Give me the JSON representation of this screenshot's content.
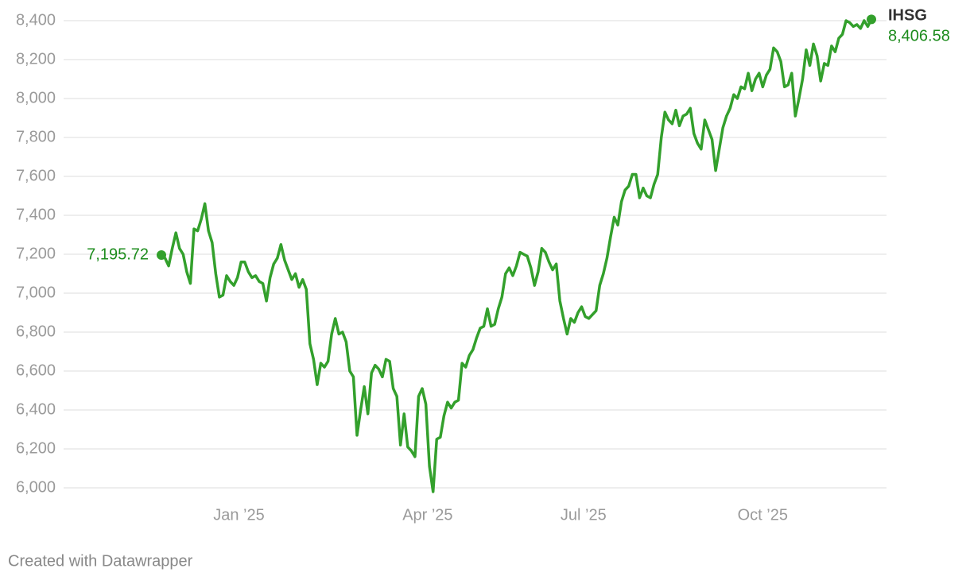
{
  "chart_data": {
    "type": "line",
    "series": [
      {
        "name": "IHSG",
        "color": "#33a02c",
        "label_color": "#1d8c1d",
        "values": [
          7195.72,
          7180,
          7140,
          7230,
          7310,
          7230,
          7200,
          7110,
          7050,
          7330,
          7320,
          7380,
          7460,
          7320,
          7260,
          7100,
          6980,
          6990,
          7090,
          7060,
          7040,
          7080,
          7160,
          7160,
          7110,
          7080,
          7090,
          7060,
          7050,
          6960,
          7080,
          7150,
          7180,
          7250,
          7170,
          7120,
          7070,
          7100,
          7030,
          7070,
          7020,
          6740,
          6660,
          6530,
          6640,
          6620,
          6650,
          6790,
          6870,
          6790,
          6800,
          6750,
          6600,
          6570,
          6270,
          6400,
          6520,
          6380,
          6590,
          6630,
          6610,
          6570,
          6660,
          6650,
          6510,
          6470,
          6220,
          6380,
          6210,
          6190,
          6160,
          6470,
          6510,
          6430,
          6110,
          5980,
          6250,
          6260,
          6370,
          6440,
          6410,
          6440,
          6450,
          6640,
          6620,
          6680,
          6710,
          6770,
          6820,
          6830,
          6920,
          6830,
          6840,
          6920,
          6980,
          7100,
          7130,
          7090,
          7140,
          7210,
          7200,
          7190,
          7130,
          7040,
          7110,
          7230,
          7210,
          7160,
          7120,
          7150,
          6960,
          6870,
          6790,
          6870,
          6850,
          6900,
          6930,
          6880,
          6870,
          6890,
          6910,
          7040,
          7100,
          7180,
          7290,
          7390,
          7350,
          7470,
          7530,
          7550,
          7610,
          7610,
          7490,
          7540,
          7500,
          7490,
          7560,
          7610,
          7800,
          7930,
          7890,
          7870,
          7940,
          7860,
          7910,
          7920,
          7950,
          7820,
          7770,
          7740,
          7890,
          7840,
          7790,
          7630,
          7740,
          7850,
          7910,
          7950,
          8020,
          8000,
          8060,
          8050,
          8130,
          8040,
          8100,
          8130,
          8060,
          8120,
          8150,
          8260,
          8240,
          8190,
          8060,
          8070,
          8130,
          7910,
          8000,
          8100,
          8250,
          8170,
          8280,
          8220,
          8090,
          8180,
          8170,
          8270,
          8240,
          8310,
          8330,
          8400,
          8390,
          8370,
          8380,
          8360,
          8400,
          8370,
          8406.58
        ],
        "value_labels": [
          "7,195.72",
          null,
          null,
          null,
          null,
          null,
          null,
          null,
          null,
          null,
          null,
          null,
          null,
          null,
          null,
          null,
          null,
          null,
          null,
          null,
          null,
          null,
          null,
          null,
          null,
          null,
          null,
          null,
          null,
          null,
          null,
          null,
          null,
          null,
          null,
          null,
          null,
          null,
          null,
          null,
          null,
          null,
          null,
          null,
          null,
          null,
          null,
          null,
          null,
          null,
          null,
          null,
          null,
          null,
          null,
          null,
          null,
          null,
          null,
          null,
          null,
          null,
          null,
          null,
          null,
          null,
          null,
          null,
          null,
          null,
          null,
          null,
          null,
          null,
          null,
          null,
          null,
          null,
          null,
          null,
          null,
          null,
          null,
          null,
          null,
          null,
          null,
          null,
          null,
          null,
          null,
          null,
          null,
          null,
          null,
          null,
          null,
          null,
          null,
          null,
          null,
          null,
          null,
          null,
          null,
          null,
          null,
          null,
          null,
          null,
          null,
          null,
          null,
          null,
          null,
          null,
          null,
          null,
          null,
          null,
          null,
          null,
          null,
          null,
          null,
          null,
          null,
          null,
          null,
          null,
          null,
          null,
          null,
          null,
          null,
          null,
          null,
          null,
          null,
          null,
          null,
          null,
          null,
          null,
          null,
          null,
          null,
          null,
          null,
          null,
          null,
          null,
          null,
          null,
          null,
          null,
          null,
          null,
          null,
          null,
          null,
          null,
          null,
          null,
          null,
          null,
          null,
          null,
          null,
          null,
          null,
          null,
          null,
          null,
          null,
          null,
          null,
          null,
          null,
          null,
          null,
          null,
          null,
          null,
          null,
          null,
          null,
          null,
          null,
          null,
          null,
          null,
          null,
          null,
          null,
          null,
          "8,406.58"
        ]
      }
    ],
    "xlim": [
      0,
      196
    ],
    "xticks": [
      {
        "value": 21.4,
        "label": "Jan ’25"
      },
      {
        "value": 73.5,
        "label": "Apr ’25"
      },
      {
        "value": 116.5,
        "label": "Jul ’25"
      },
      {
        "value": 166,
        "label": "Oct ’25"
      }
    ],
    "ylim": [
      6000,
      8400
    ],
    "yticks": [
      {
        "value": 6000,
        "label": "6,000"
      },
      {
        "value": 6200,
        "label": "6,200"
      },
      {
        "value": 6400,
        "label": "6,400"
      },
      {
        "value": 6600,
        "label": "6,600"
      },
      {
        "value": 6800,
        "label": "6,800"
      },
      {
        "value": 7000,
        "label": "7,000"
      },
      {
        "value": 7200,
        "label": "7,200"
      },
      {
        "value": 7400,
        "label": "7,400"
      },
      {
        "value": 7600,
        "label": "7,600"
      },
      {
        "value": 7800,
        "label": "7,800"
      },
      {
        "value": 8000,
        "label": "8,000"
      },
      {
        "value": 8200,
        "label": "8,200"
      },
      {
        "value": 8400,
        "label": "8,400"
      }
    ],
    "grid": true,
    "source": "Created with Datawrapper"
  }
}
